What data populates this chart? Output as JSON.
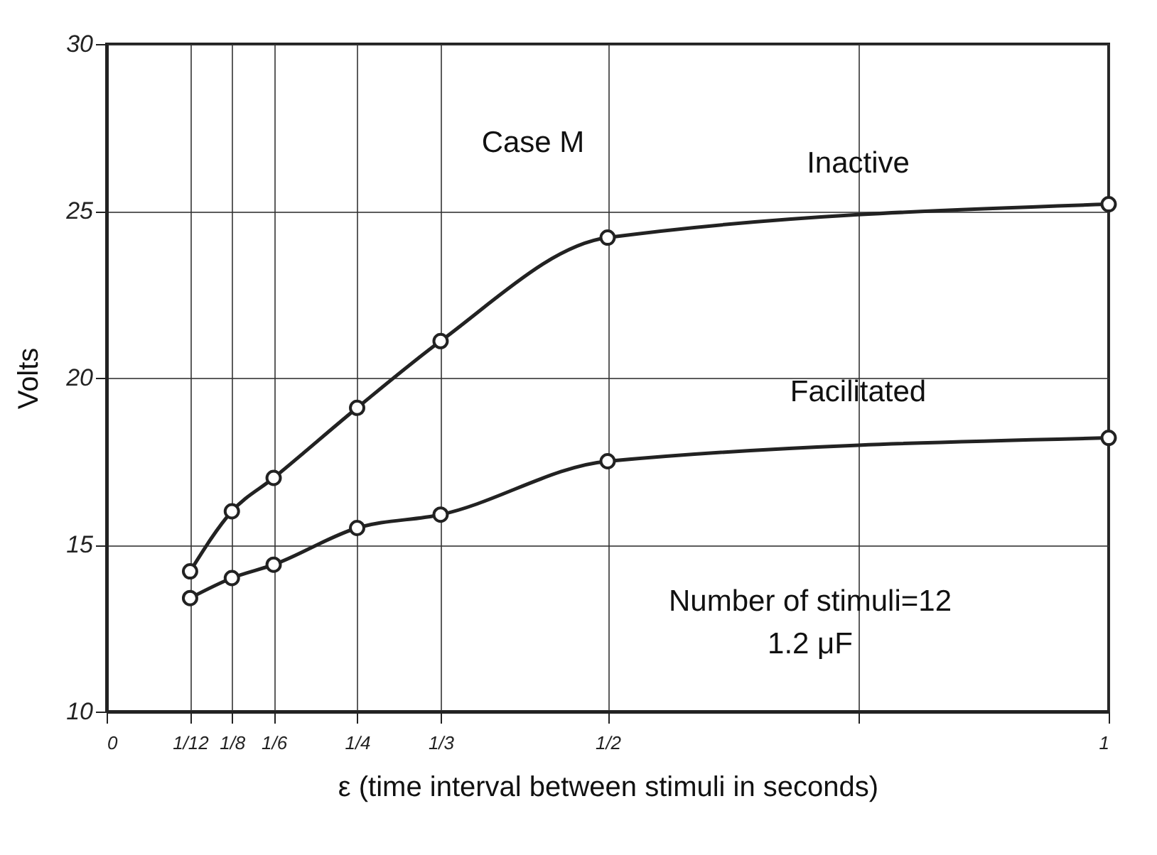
{
  "chart_data": {
    "type": "line",
    "xlabel": "ε (time interval between stimuli in seconds)",
    "ylabel": "Volts",
    "x": [
      0.0833,
      0.125,
      0.1667,
      0.25,
      0.3333,
      0.5,
      1
    ],
    "series": [
      {
        "name": "Inactive",
        "color": "#222222",
        "values": [
          14.2,
          16.0,
          17.0,
          19.1,
          21.1,
          24.2,
          25.2
        ]
      },
      {
        "name": "Facilitated",
        "color": "#222222",
        "values": [
          13.4,
          14.0,
          14.4,
          15.5,
          15.9,
          17.5,
          18.2
        ]
      }
    ],
    "xlim": [
      0,
      1
    ],
    "xticks": [
      0,
      {
        "value": 0.0833,
        "label": "1/12"
      },
      {
        "value": 0.125,
        "label": "1/8"
      },
      {
        "value": 0.1667,
        "label": "1/6"
      },
      {
        "value": 0.25,
        "label": "1/4"
      },
      {
        "value": 0.3333,
        "label": "1/3"
      },
      {
        "value": 0.5,
        "label": "1/2"
      },
      {
        "value": 0.75,
        "label": null
      },
      1
    ],
    "ylim": [
      10,
      30
    ],
    "yticks": [
      10,
      15,
      20,
      25,
      30
    ],
    "grid": true,
    "marker": "circle",
    "line_style": "solid",
    "legend": false,
    "annotations": [
      "Case M",
      "Number of stimuli=12",
      "1.2 μF"
    ]
  }
}
